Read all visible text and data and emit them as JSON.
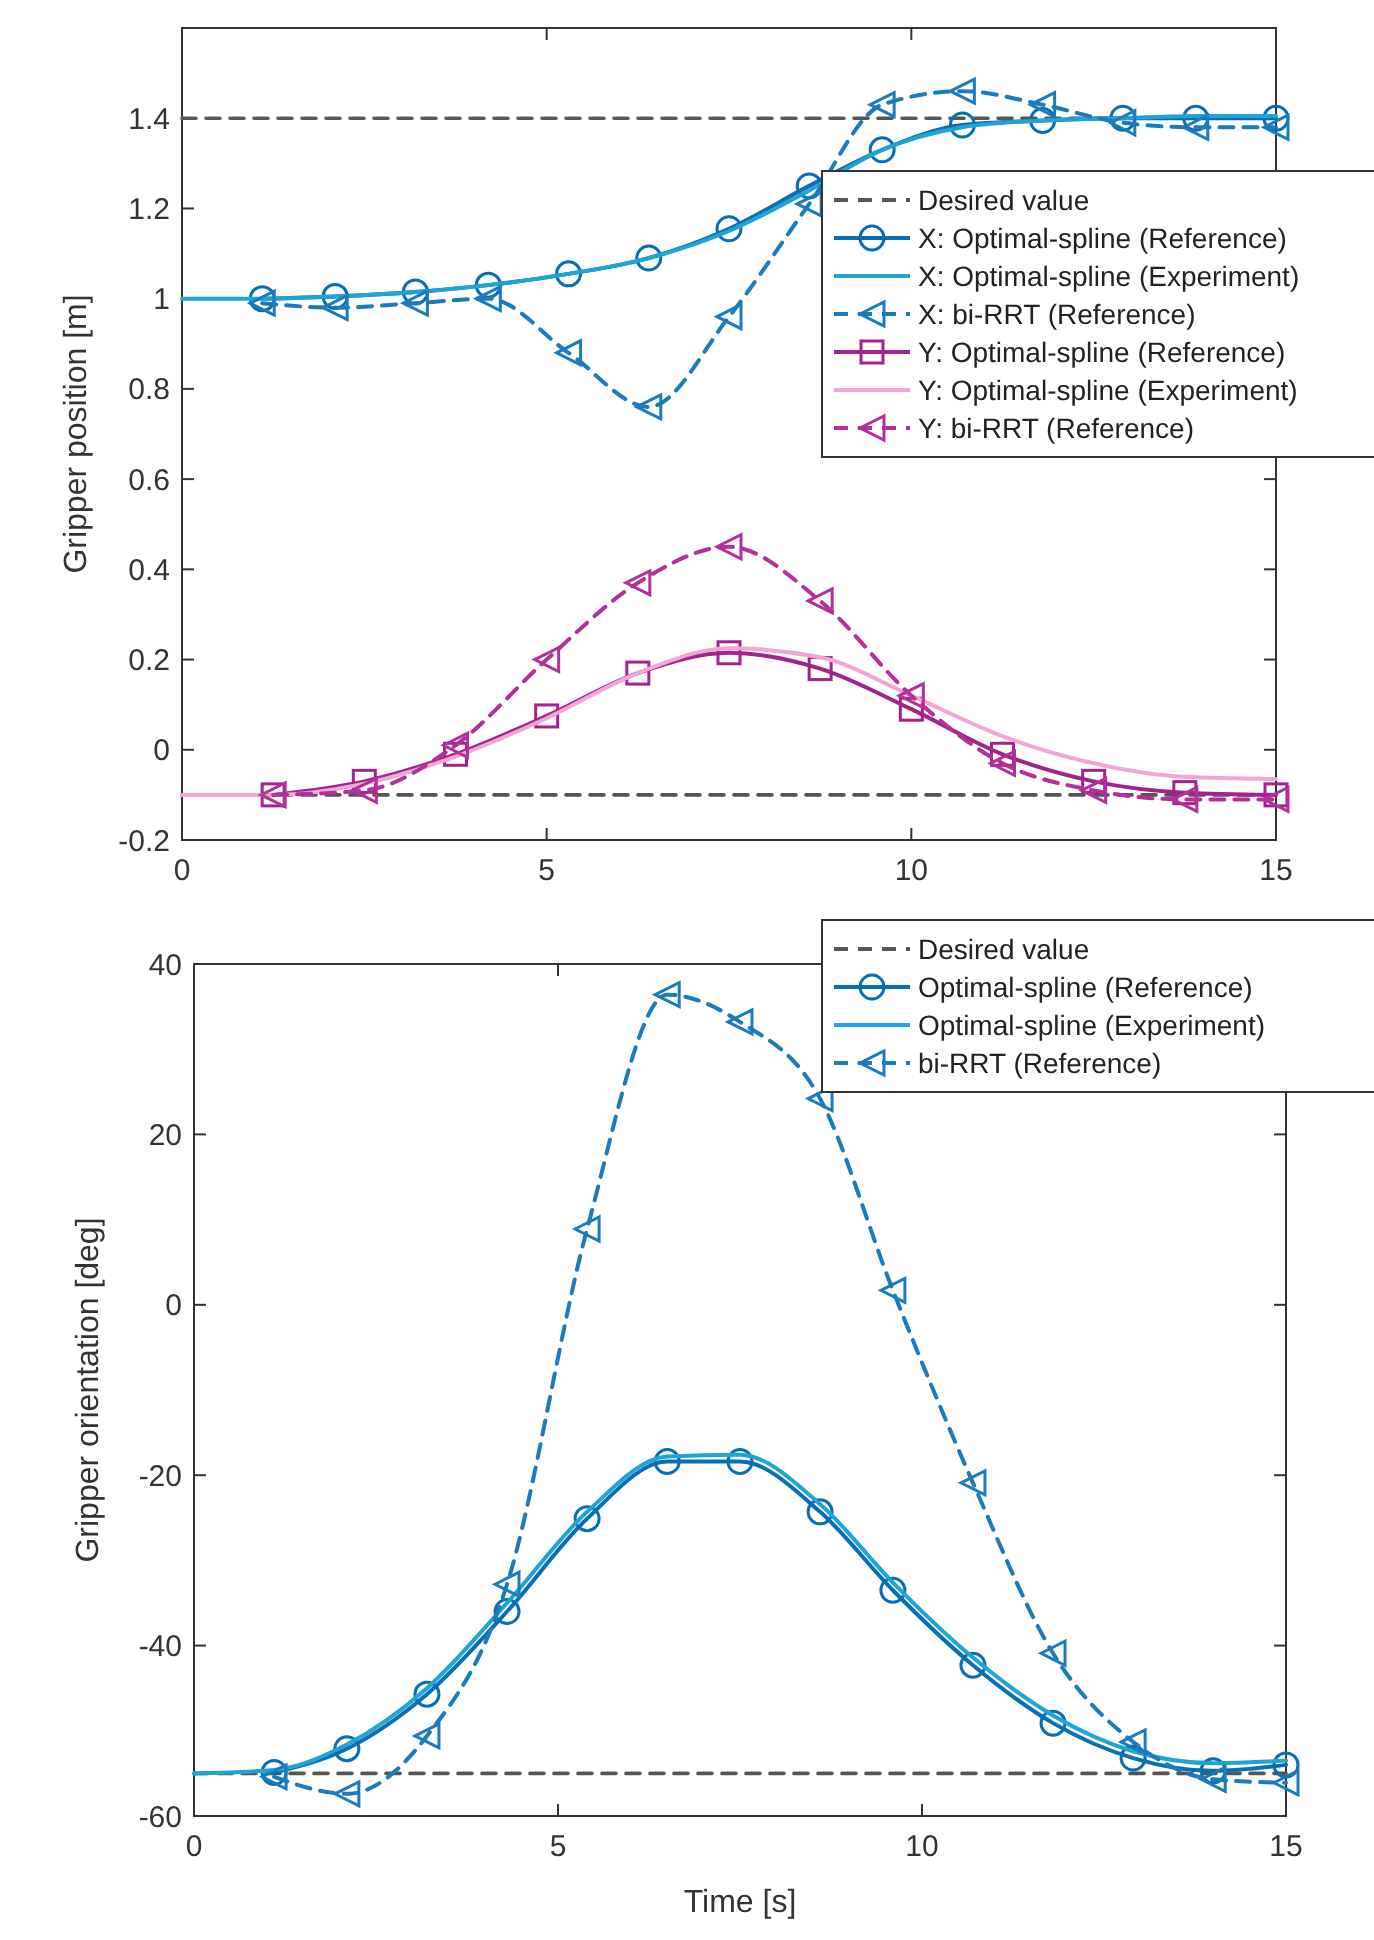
{
  "chart_data": [
    {
      "type": "line",
      "ylabel": "Gripper position [m]",
      "xlim": [
        0,
        15
      ],
      "ylim": [
        -0.2,
        1.6
      ],
      "xticks": [
        0,
        5,
        10,
        15
      ],
      "yticks": [
        -0.2,
        0,
        0.2,
        0.4,
        0.6,
        0.8,
        1,
        1.2,
        1.4
      ],
      "legend": "right",
      "grid": false,
      "series": [
        {
          "name": "Desired value",
          "color": "#555555",
          "line_style": "dashed",
          "marker": "none",
          "x": [
            0,
            15
          ],
          "values": [
            1.4,
            1.4
          ]
        },
        {
          "color": "#555555",
          "line_style": "dashed",
          "marker": "none",
          "x": [
            0,
            15
          ],
          "values": [
            -0.1,
            -0.1
          ]
        },
        {
          "name": "X: Optimal-spline (Reference)",
          "color": "#0a6eb4",
          "line_style": "solid",
          "marker": "circle",
          "x": [
            1.1,
            2.1,
            3.2,
            4.2,
            5.3,
            6.4,
            7.5,
            8.6,
            9.6,
            10.7,
            11.8,
            12.9,
            13.9,
            15
          ],
          "values": [
            1.0,
            1.005,
            1.015,
            1.03,
            1.055,
            1.09,
            1.155,
            1.25,
            1.33,
            1.385,
            1.395,
            1.4,
            1.4,
            1.4
          ]
        },
        {
          "name": "X: Optimal-spline (Experiment)",
          "color": "#1ea5d8",
          "line_style": "solid",
          "marker": "none",
          "x": [
            0,
            1.1,
            2.1,
            3.2,
            4.2,
            5.3,
            6.4,
            7.5,
            8.6,
            9.6,
            10.7,
            11.8,
            12.9,
            13.9,
            15
          ],
          "values": [
            1.0,
            1.0,
            1.005,
            1.015,
            1.03,
            1.055,
            1.09,
            1.15,
            1.24,
            1.33,
            1.38,
            1.395,
            1.4,
            1.405,
            1.405
          ]
        },
        {
          "name": "X: bi-RRT (Reference)",
          "color": "#1a7bbd",
          "line_style": "dashed",
          "marker": "triangle",
          "x": [
            1.1,
            2.1,
            3.2,
            4.2,
            5.3,
            6.4,
            7.5,
            8.6,
            9.6,
            10.7,
            11.8,
            12.9,
            13.9,
            15
          ],
          "values": [
            0.99,
            0.98,
            0.99,
            1.0,
            0.88,
            0.76,
            0.96,
            1.21,
            1.43,
            1.46,
            1.43,
            1.39,
            1.38,
            1.38
          ]
        },
        {
          "name": "Y: Optimal-spline (Reference)",
          "color": "#a3238e",
          "line_style": "solid",
          "marker": "square",
          "x": [
            1.25,
            2.5,
            3.75,
            5,
            6.25,
            7.5,
            8.75,
            10,
            11.25,
            12.5,
            13.75,
            15
          ],
          "values": [
            -0.1,
            -0.07,
            -0.01,
            0.075,
            0.17,
            0.215,
            0.18,
            0.09,
            -0.01,
            -0.07,
            -0.095,
            -0.1
          ]
        },
        {
          "name": "Y: Optimal-spline (Experiment)",
          "color": "#f2a5d6",
          "line_style": "solid",
          "marker": "none",
          "x": [
            0,
            1.25,
            2.5,
            3.75,
            5,
            6.25,
            7.5,
            8.75,
            10,
            11.25,
            12.5,
            13.75,
            15
          ],
          "values": [
            -0.1,
            -0.1,
            -0.075,
            -0.015,
            0.07,
            0.17,
            0.225,
            0.205,
            0.12,
            0.03,
            -0.03,
            -0.06,
            -0.065
          ]
        },
        {
          "name": "Y: bi-RRT (Reference)",
          "color": "#b3309a",
          "line_style": "dashed",
          "marker": "triangle",
          "x": [
            1.25,
            2.5,
            3.75,
            5,
            6.25,
            7.5,
            8.75,
            10,
            11.25,
            12.5,
            13.75,
            15
          ],
          "values": [
            -0.1,
            -0.09,
            0.01,
            0.2,
            0.37,
            0.45,
            0.33,
            0.12,
            -0.03,
            -0.09,
            -0.11,
            -0.11
          ]
        }
      ]
    },
    {
      "type": "line",
      "xlabel": "Time [s]",
      "ylabel": "Gripper orientation [deg]",
      "xlim": [
        0,
        15
      ],
      "ylim": [
        -60,
        40
      ],
      "xticks": [
        0,
        5,
        10,
        15
      ],
      "yticks": [
        -60,
        -40,
        -20,
        0,
        20,
        40
      ],
      "legend": "top right",
      "grid": false,
      "series": [
        {
          "name": "Desired value",
          "color": "#555555",
          "line_style": "dashed",
          "marker": "none",
          "x": [
            0,
            15
          ],
          "values": [
            -55,
            -55
          ]
        },
        {
          "name": "Optimal-spline (Reference)",
          "color": "#0a6eb4",
          "line_style": "solid",
          "marker": "circle",
          "x": [
            1.1,
            2.1,
            3.2,
            4.3,
            5.4,
            6.5,
            7.5,
            8.6,
            9.6,
            10.7,
            11.8,
            12.9,
            14,
            15
          ],
          "values": [
            -54.9,
            -52.1,
            -45.7,
            -36,
            -25.1,
            -18.4,
            -18.4,
            -24.3,
            -33.5,
            -42.3,
            -49.1,
            -53.2,
            -54.7,
            -54
          ]
        },
        {
          "name": "Optimal-spline (Experiment)",
          "color": "#1ea5d8",
          "line_style": "solid",
          "marker": "none",
          "x": [
            0,
            1.1,
            2.1,
            3.2,
            4.3,
            5.4,
            6.5,
            7.5,
            8.6,
            9.6,
            10.7,
            11.8,
            12.9,
            14,
            15
          ],
          "values": [
            -55,
            -54.6,
            -51.6,
            -45,
            -35,
            -24.3,
            -17.8,
            -17.6,
            -23.4,
            -32.6,
            -41.4,
            -48.2,
            -52.4,
            -53.8,
            -53.5
          ]
        },
        {
          "name": "bi-RRT (Reference)",
          "color": "#1a7bbd",
          "line_style": "dashed",
          "marker": "triangle",
          "x": [
            1.1,
            2.1,
            3.2,
            4.3,
            5.4,
            6.5,
            7.5,
            8.6,
            9.6,
            10.7,
            11.8,
            12.9,
            14,
            15
          ],
          "values": [
            -55.4,
            -57.4,
            -50.6,
            -32.8,
            8.9,
            36.4,
            33.2,
            24.2,
            1.7,
            -20.9,
            -40.9,
            -51.3,
            -55.7,
            -56.1
          ]
        }
      ]
    }
  ]
}
